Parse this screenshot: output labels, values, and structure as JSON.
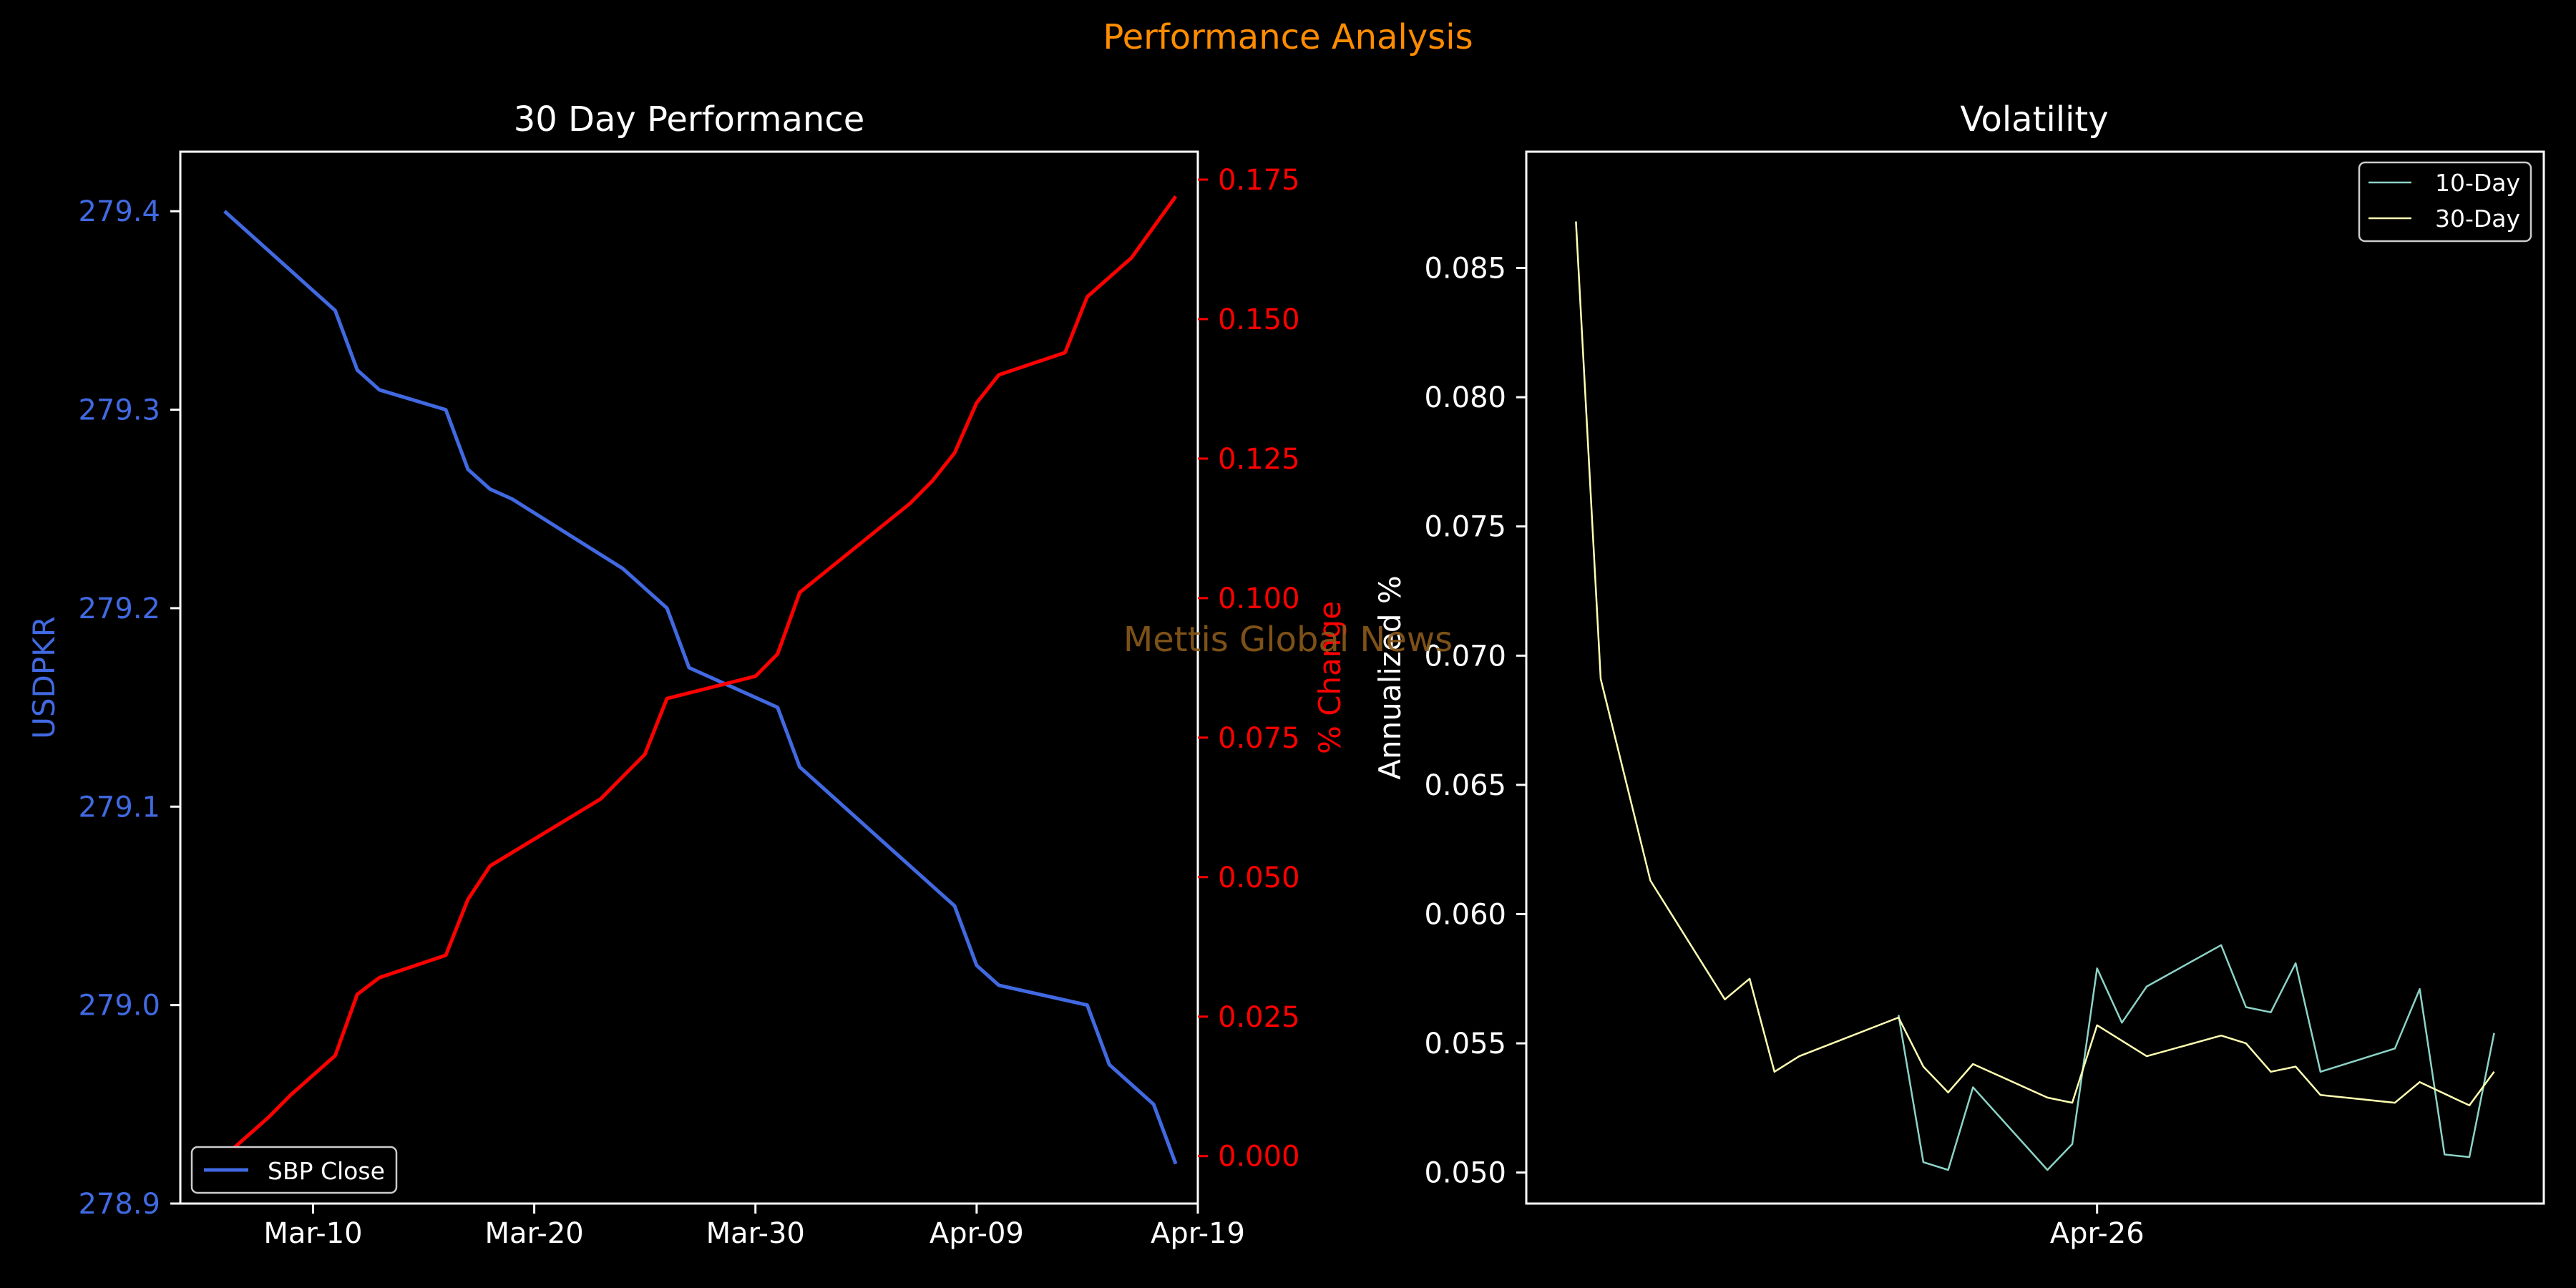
{
  "figure": {
    "suptitle": "Performance Analysis",
    "watermark": "Mettis Global News",
    "colors": {
      "background": "#000000",
      "suptitle": "#ff8c00",
      "price": "#4169e1",
      "change": "#ff0000",
      "vol10": "#8dd3c7",
      "vol30": "#ffffb3",
      "axes": "#ffffff",
      "watermark": "#8b5a1a"
    }
  },
  "chart_data": [
    {
      "type": "line",
      "title": "30 Day Performance",
      "ylabel": "USDPKR",
      "y2label": "% Change",
      "legend": {
        "entries": [
          "SBP Close"
        ],
        "placement": "lower-left"
      },
      "xlim": [
        "2025-03-04",
        "2025-04-19"
      ],
      "ylim": [
        278.9,
        279.43
      ],
      "y2lim": [
        -0.0085,
        0.18
      ],
      "xticks": [
        {
          "date": "2025-03-10",
          "label": "Mar-10"
        },
        {
          "date": "2025-03-20",
          "label": "Mar-20"
        },
        {
          "date": "2025-03-30",
          "label": "Mar-30"
        },
        {
          "date": "2025-04-09",
          "label": "Apr-09"
        },
        {
          "date": "2025-04-19",
          "label": "Apr-19"
        }
      ],
      "yticks": [
        {
          "value": 278.9,
          "label": "278.9"
        },
        {
          "value": 279.0,
          "label": "279.0"
        },
        {
          "value": 279.1,
          "label": "279.1"
        },
        {
          "value": 279.2,
          "label": "279.2"
        },
        {
          "value": 279.3,
          "label": "279.3"
        },
        {
          "value": 279.4,
          "label": "279.4"
        }
      ],
      "y2ticks": [
        {
          "value": 0.0,
          "label": "0.000"
        },
        {
          "value": 0.025,
          "label": "0.025"
        },
        {
          "value": 0.05,
          "label": "0.050"
        },
        {
          "value": 0.075,
          "label": "0.075"
        },
        {
          "value": 0.1,
          "label": "0.100"
        },
        {
          "value": 0.125,
          "label": "0.125"
        },
        {
          "value": 0.15,
          "label": "0.150"
        },
        {
          "value": 0.175,
          "label": "0.175"
        }
      ],
      "series": [
        {
          "name": "SBP Close",
          "axis": "left",
          "points": [
            [
              "2025-03-06",
              279.4
            ],
            [
              "2025-03-07",
              279.39
            ],
            [
              "2025-03-08",
              279.38
            ],
            [
              "2025-03-09",
              279.37
            ],
            [
              "2025-03-10",
              279.36
            ],
            [
              "2025-03-11",
              279.35
            ],
            [
              "2025-03-12",
              279.32
            ],
            [
              "2025-03-13",
              279.31
            ],
            [
              "2025-03-16",
              279.3
            ],
            [
              "2025-03-17",
              279.27
            ],
            [
              "2025-03-18",
              279.26
            ],
            [
              "2025-03-19",
              279.255
            ],
            [
              "2025-03-24",
              279.22
            ],
            [
              "2025-03-25",
              279.21
            ],
            [
              "2025-03-26",
              279.2
            ],
            [
              "2025-03-27",
              279.17
            ],
            [
              "2025-03-31",
              279.15
            ],
            [
              "2025-04-01",
              279.12
            ],
            [
              "2025-04-05",
              279.08
            ],
            [
              "2025-04-06",
              279.07
            ],
            [
              "2025-04-07",
              279.06
            ],
            [
              "2025-04-08",
              279.05
            ],
            [
              "2025-04-09",
              279.02
            ],
            [
              "2025-04-10",
              279.01
            ],
            [
              "2025-04-14",
              279.0
            ],
            [
              "2025-04-15",
              278.97
            ],
            [
              "2025-04-17",
              278.95
            ],
            [
              "2025-04-18",
              278.92
            ]
          ]
        },
        {
          "name": "% Change",
          "axis": "right",
          "points": [
            [
              "2025-03-06",
              0.0
            ],
            [
              "2025-03-08",
              0.007
            ],
            [
              "2025-03-09",
              0.011
            ],
            [
              "2025-03-11",
              0.018
            ],
            [
              "2025-03-12",
              0.029
            ],
            [
              "2025-03-13",
              0.032
            ],
            [
              "2025-03-16",
              0.036
            ],
            [
              "2025-03-17",
              0.046
            ],
            [
              "2025-03-18",
              0.052
            ],
            [
              "2025-03-23",
              0.064
            ],
            [
              "2025-03-25",
              0.072
            ],
            [
              "2025-03-26",
              0.082
            ],
            [
              "2025-03-30",
              0.086
            ],
            [
              "2025-03-31",
              0.09
            ],
            [
              "2025-04-01",
              0.101
            ],
            [
              "2025-04-06",
              0.117
            ],
            [
              "2025-04-07",
              0.121
            ],
            [
              "2025-04-08",
              0.126
            ],
            [
              "2025-04-09",
              0.135
            ],
            [
              "2025-04-10",
              0.14
            ],
            [
              "2025-04-13",
              0.144
            ],
            [
              "2025-04-14",
              0.154
            ],
            [
              "2025-04-16",
              0.161
            ],
            [
              "2025-04-18",
              0.172
            ]
          ]
        }
      ]
    },
    {
      "type": "line",
      "title": "Volatility",
      "ylabel": "Annualized %",
      "legend": {
        "entries": [
          "10-Day",
          "30-Day"
        ],
        "placement": "upper-right"
      },
      "xlim": [
        0,
        41
      ],
      "ylim": [
        0.0488,
        0.0895
      ],
      "xticks": [
        {
          "value": 23,
          "label": "Apr-26"
        }
      ],
      "yticks": [
        {
          "value": 0.05,
          "label": "0.050"
        },
        {
          "value": 0.055,
          "label": "0.055"
        },
        {
          "value": 0.06,
          "label": "0.060"
        },
        {
          "value": 0.065,
          "label": "0.065"
        },
        {
          "value": 0.07,
          "label": "0.070"
        },
        {
          "value": 0.075,
          "label": "0.075"
        },
        {
          "value": 0.08,
          "label": "0.080"
        },
        {
          "value": 0.085,
          "label": "0.085"
        }
      ],
      "series": [
        {
          "name": "10-Day",
          "points": [
            [
              15,
              0.0561
            ],
            [
              16,
              0.0504
            ],
            [
              17,
              0.0501
            ],
            [
              18,
              0.0533
            ],
            [
              21,
              0.0501
            ],
            [
              22,
              0.0511
            ],
            [
              23,
              0.0579
            ],
            [
              24,
              0.0558
            ],
            [
              25,
              0.0572
            ],
            [
              28,
              0.0588
            ],
            [
              29,
              0.0564
            ],
            [
              30,
              0.0562
            ],
            [
              31,
              0.0581
            ],
            [
              32,
              0.0539
            ],
            [
              35,
              0.0548
            ],
            [
              36,
              0.0571
            ],
            [
              37,
              0.0507
            ],
            [
              38,
              0.0506
            ],
            [
              39,
              0.0554
            ]
          ]
        },
        {
          "name": "30-Day",
          "points": [
            [
              2,
              0.0868
            ],
            [
              3,
              0.0691
            ],
            [
              5,
              0.0613
            ],
            [
              8,
              0.0567
            ],
            [
              9,
              0.0575
            ],
            [
              10,
              0.0539
            ],
            [
              11,
              0.0545
            ],
            [
              15,
              0.056
            ],
            [
              16,
              0.0541
            ],
            [
              17,
              0.0531
            ],
            [
              18,
              0.0542
            ],
            [
              21,
              0.0529
            ],
            [
              22,
              0.0527
            ],
            [
              23,
              0.0557
            ],
            [
              25,
              0.0545
            ],
            [
              28,
              0.0553
            ],
            [
              29,
              0.055
            ],
            [
              30,
              0.0539
            ],
            [
              31,
              0.0541
            ],
            [
              32,
              0.053
            ],
            [
              35,
              0.0527
            ],
            [
              36,
              0.0535
            ],
            [
              38,
              0.0526
            ],
            [
              39,
              0.0539
            ]
          ]
        }
      ]
    }
  ]
}
